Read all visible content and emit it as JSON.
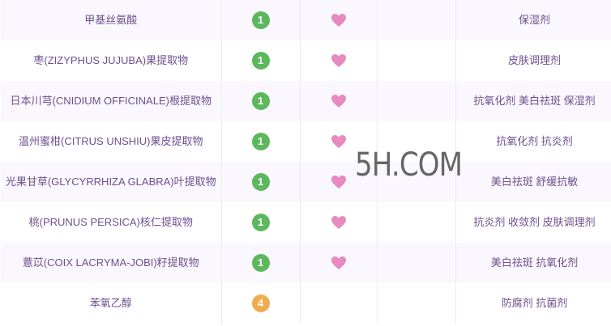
{
  "colors": {
    "green": "#5cb85c",
    "orange": "#f0ad4e",
    "heart": "#e68ac0"
  },
  "rows": [
    {
      "name": "甲基丝氨酸",
      "score": "1",
      "level": "green",
      "heart": true,
      "usage": "保湿剂"
    },
    {
      "name": "枣(ZIZYPHUS JUJUBA)果提取物",
      "score": "1",
      "level": "green",
      "heart": true,
      "usage": "皮肤调理剂"
    },
    {
      "name": "日本川芎(CNIDIUM OFFICINALE)根提取物",
      "score": "1",
      "level": "green",
      "heart": true,
      "usage": "抗氧化剂 美白祛斑 保湿剂"
    },
    {
      "name": "温州蜜柑(CITRUS UNSHIU)果皮提取物",
      "score": "1",
      "level": "green",
      "heart": true,
      "usage": "抗氧化剂 抗炎剂"
    },
    {
      "name": "光果甘草(GLYCYRRHIZA GLABRA)叶提取物",
      "score": "1",
      "level": "green",
      "heart": true,
      "usage": "美白祛斑 舒缓抗敏"
    },
    {
      "name": "桃(PRUNUS PERSICA)核仁提取物",
      "score": "1",
      "level": "green",
      "heart": true,
      "usage": "抗炎剂 收敛剂 皮肤调理剂"
    },
    {
      "name": "薏苡(COIX LACRYMA-JOBI)籽提取物",
      "score": "1",
      "level": "green",
      "heart": true,
      "usage": "美白祛斑 抗氧化剂"
    },
    {
      "name": "苯氧乙醇",
      "score": "4",
      "level": "orange",
      "heart": false,
      "usage": "防腐剂 抗菌剂"
    }
  ],
  "watermark": "5H.COM"
}
